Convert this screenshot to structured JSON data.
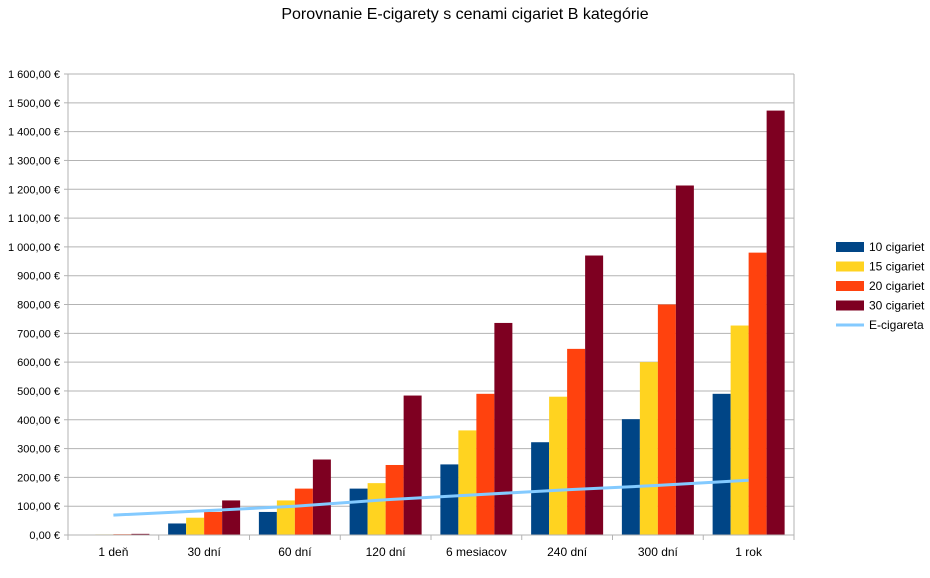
{
  "chart_data": {
    "type": "bar",
    "title": "Porovnanie E-cigarety s cenami cigariet B kategórie",
    "categories": [
      "1 deň",
      "30 dní",
      "60 dní",
      "120 dní",
      "6 mesiacov",
      "240 dní",
      "300 dní",
      "1 rok"
    ],
    "y_ticks": [
      "0,00 €",
      "100,00 €",
      "200,00 €",
      "300,00 €",
      "400,00 €",
      "500,00 €",
      "600,00 €",
      "700,00 €",
      "800,00 €",
      "900,00 €",
      "1 000,00 €",
      "1 100,00 €",
      "1 200,00 €",
      "1 300,00 €",
      "1 400,00 €",
      "1 500,00 €",
      "1 600,00 €"
    ],
    "ylim": [
      0,
      1600
    ],
    "grid": true,
    "legend_position": "right",
    "series": [
      {
        "name": "10 cigariet",
        "type": "bar",
        "color": "#004586",
        "values": [
          1.3,
          40,
          80,
          161,
          245,
          322,
          402,
          490
        ]
      },
      {
        "name": "15 cigariet",
        "type": "bar",
        "color": "#ffd320",
        "values": [
          2,
          60,
          120,
          180,
          363,
          480,
          600,
          727
        ]
      },
      {
        "name": "20 cigariet",
        "type": "bar",
        "color": "#ff420e",
        "values": [
          2.7,
          80,
          161,
          243,
          490,
          646,
          800,
          980
        ]
      },
      {
        "name": "30 cigariet",
        "type": "bar",
        "color": "#7e0021",
        "values": [
          4,
          120,
          262,
          484,
          736,
          970,
          1213,
          1473
        ]
      },
      {
        "name": "E-cigareta",
        "type": "line",
        "color": "#83caff",
        "values": [
          69,
          84,
          100,
          122,
          140,
          157,
          172,
          190
        ]
      }
    ]
  }
}
